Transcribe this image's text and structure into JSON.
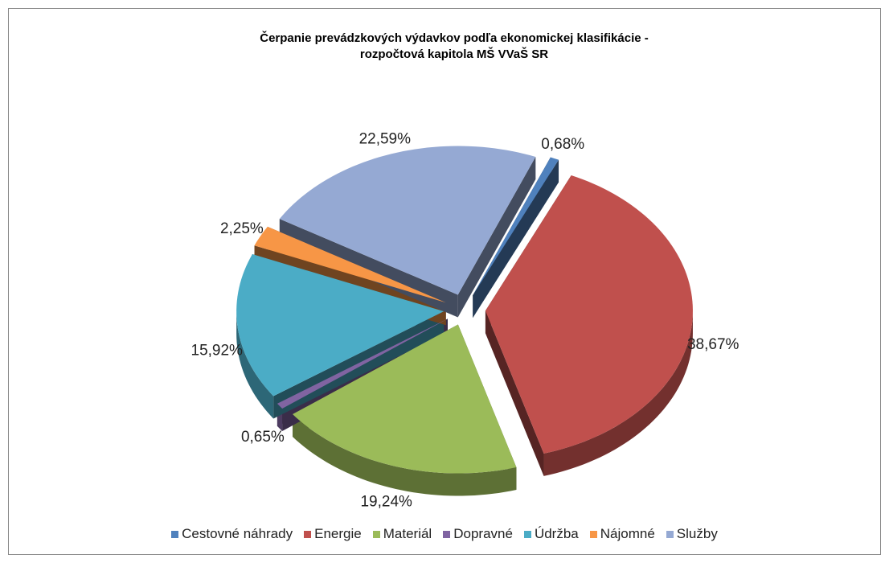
{
  "chart_data": {
    "type": "pie",
    "title": [
      "Čerpanie prevádzkových výdavkov podľa ekonomickej klasifikácie -",
      "rozpočtová kapitola MŠ VVaŠ SR"
    ],
    "categories": [
      "Cestovné náhrady",
      "Energie",
      "Materiál",
      "Dopravné",
      "Údržba",
      "Nájomné",
      "Služby"
    ],
    "values": [
      0.68,
      38.67,
      19.24,
      0.65,
      15.92,
      2.25,
      22.59
    ],
    "value_labels": [
      "0,68%",
      "38,67%",
      "19,24%",
      "0,65%",
      "15,92%",
      "2,25%",
      "22,59%"
    ],
    "colors": [
      "#4f81bd",
      "#c0504d",
      "#9bbb59",
      "#8064a2",
      "#4bacc6",
      "#f79646",
      "#95a9d3"
    ],
    "legend": "bottom"
  }
}
